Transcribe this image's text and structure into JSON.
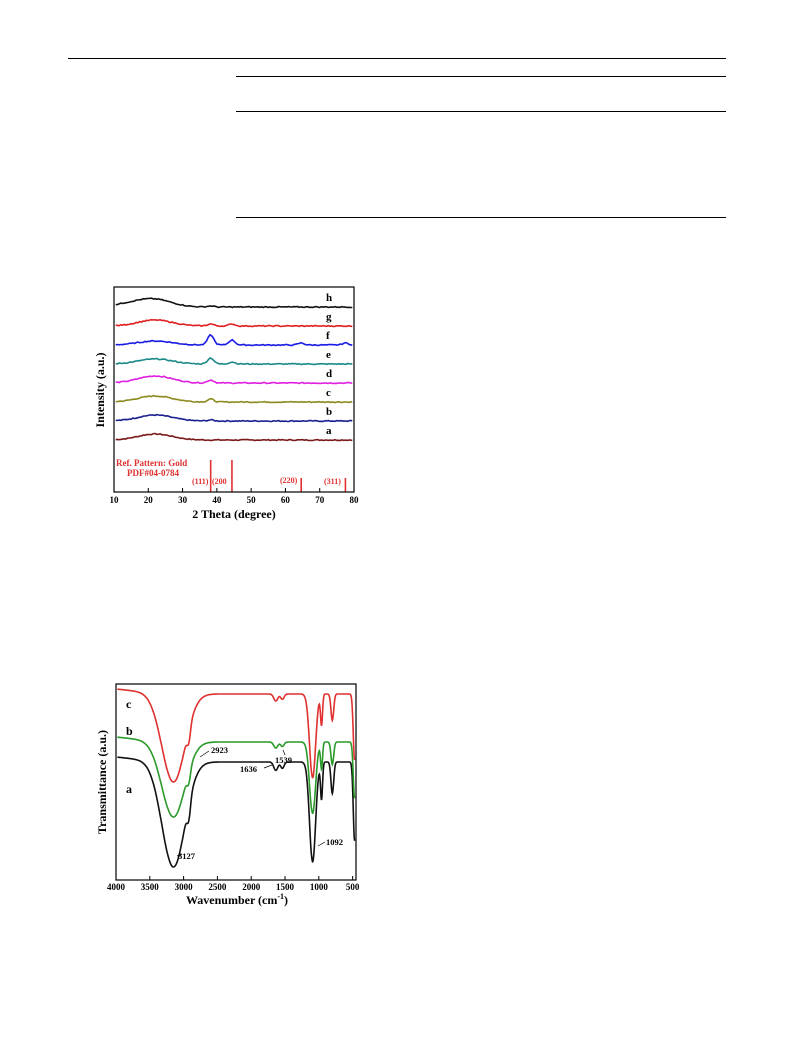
{
  "page": {},
  "xrd_figure": {
    "chart_data": {
      "type": "line",
      "xlabel": "2 Theta (degree)",
      "ylabel": "Intensity (a.u.)",
      "xlim": [
        10,
        80
      ],
      "x_ticks": [
        "10",
        "20",
        "30",
        "40",
        "50",
        "60",
        "70",
        "80"
      ],
      "reference_label_1": "Ref. Pattern: Gold",
      "reference_label_2": "PDF#04-0784",
      "reference_peaks": [
        {
          "x": 38.2,
          "label": "(111)"
        },
        {
          "x": 44.4,
          "label": "(200"
        },
        {
          "x": 64.6,
          "label": "(220)"
        },
        {
          "x": 77.5,
          "label": "(311)"
        }
      ],
      "series": [
        {
          "name": "a",
          "color": "#7a1a1a",
          "peaks": [
            [
              22,
              6
            ]
          ]
        },
        {
          "name": "b",
          "color": "#1a1f8f",
          "peaks": [
            [
              22,
              6
            ],
            [
              38.2,
              1
            ]
          ]
        },
        {
          "name": "c",
          "color": "#8c8a1e",
          "peaks": [
            [
              22,
              6
            ],
            [
              38.2,
              3
            ]
          ]
        },
        {
          "name": "d",
          "color": "#e020e0",
          "peaks": [
            [
              22,
              7
            ],
            [
              38.2,
              3
            ]
          ]
        },
        {
          "name": "e",
          "color": "#1a8a88",
          "peaks": [
            [
              22,
              5
            ],
            [
              38.2,
              6
            ],
            [
              44.4,
              2
            ]
          ]
        },
        {
          "name": "f",
          "color": "#1a1ae6",
          "peaks": [
            [
              22,
              4
            ],
            [
              38.2,
              10
            ],
            [
              44.4,
              5
            ],
            [
              64.6,
              2
            ],
            [
              77.5,
              2
            ]
          ]
        },
        {
          "name": "g",
          "color": "#e02020",
          "peaks": [
            [
              22,
              6
            ],
            [
              38.2,
              2
            ],
            [
              44.4,
              2
            ]
          ]
        },
        {
          "name": "h",
          "color": "#111111",
          "peaks": [
            [
              15,
              3
            ],
            [
              22,
              7
            ],
            [
              38.2,
              1
            ]
          ]
        }
      ]
    }
  },
  "ftir_figure": {
    "chart_data": {
      "type": "line",
      "xlabel": "Wavenumber (cm",
      "xlabel_sup": "-1",
      "xlabel_close": ")",
      "ylabel": "Transmittance (a.u.)",
      "xlim": [
        4000,
        450
      ],
      "x_ticks": [
        "4000",
        "3500",
        "3000",
        "2500",
        "2000",
        "1500",
        "1000",
        "500"
      ],
      "annotations": [
        "3127",
        "2923",
        "1636",
        "1539",
        "1092"
      ],
      "series": [
        {
          "name": "a",
          "color": "#111111"
        },
        {
          "name": "b",
          "color": "#2a9a2a"
        },
        {
          "name": "c",
          "color": "#e03030"
        }
      ]
    }
  }
}
